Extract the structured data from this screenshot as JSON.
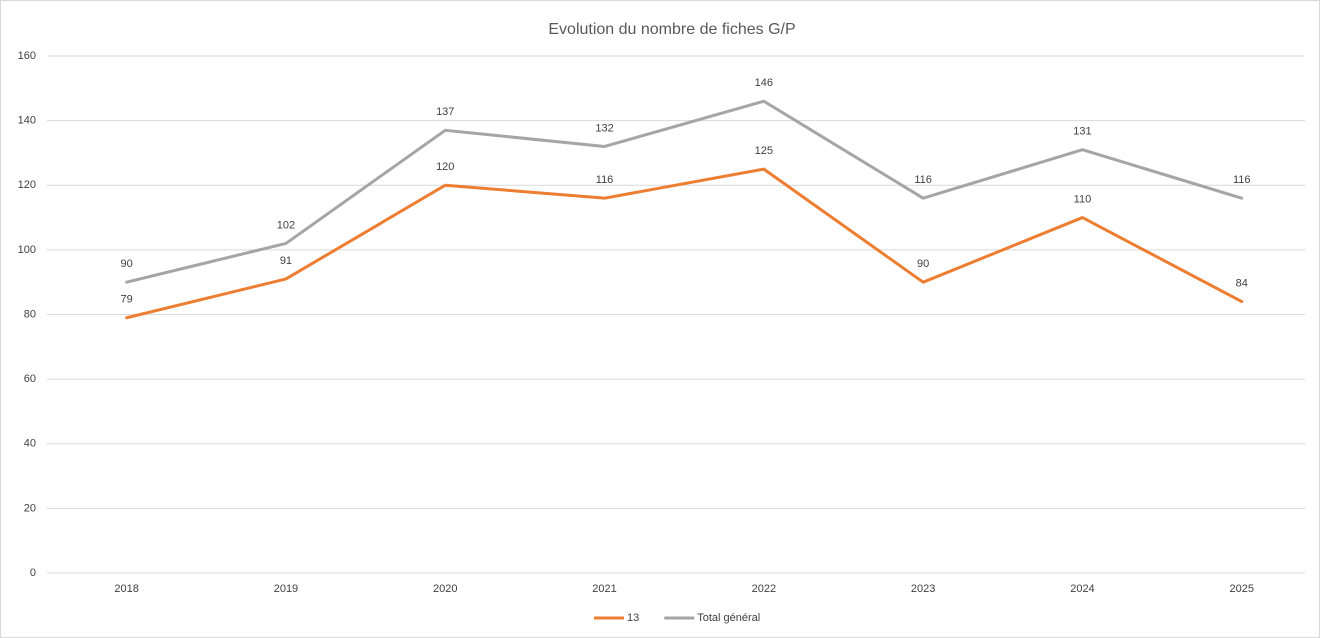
{
  "chart_data": {
    "type": "line",
    "title": "Evolution du nombre de fiches G/P",
    "categories": [
      "2018",
      "2019",
      "2020",
      "2021",
      "2022",
      "2023",
      "2024",
      "2025"
    ],
    "series": [
      {
        "name": "13",
        "color": "#ed7d31",
        "values": [
          79,
          91,
          120,
          116,
          125,
          90,
          110,
          84
        ]
      },
      {
        "name": "Total général",
        "color": "#a5a5a5",
        "values": [
          90,
          102,
          137,
          132,
          146,
          116,
          131,
          116
        ]
      }
    ],
    "ylim": [
      0,
      160
    ],
    "yticks": [
      0,
      20,
      40,
      60,
      80,
      100,
      120,
      140,
      160
    ],
    "grid": true,
    "legend": "bottom"
  }
}
